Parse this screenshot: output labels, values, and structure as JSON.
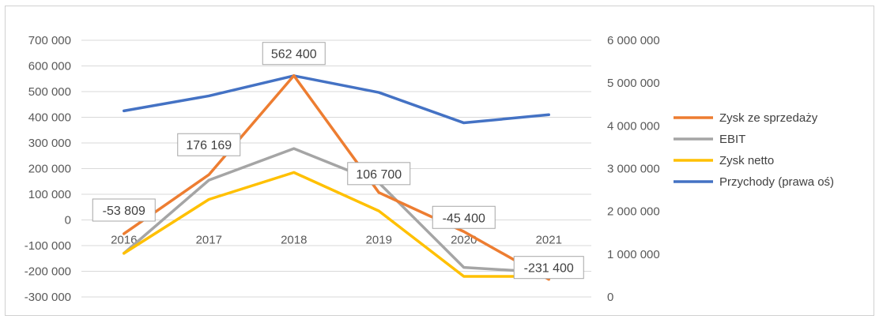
{
  "chart_data": {
    "type": "line",
    "categories": [
      "2016",
      "2017",
      "2018",
      "2019",
      "2020",
      "2021"
    ],
    "left_axis": {
      "ylim": [
        -300000,
        700000
      ],
      "ticks": [
        700000,
        600000,
        500000,
        400000,
        300000,
        200000,
        100000,
        0,
        -100000,
        -200000,
        -300000
      ],
      "tick_labels": [
        "700 000",
        "600 000",
        "500 000",
        "400 000",
        "300 000",
        "200 000",
        "100 000",
        "0",
        "-100 000",
        "-200 000",
        "-300 000"
      ]
    },
    "right_axis": {
      "ylim": [
        0,
        6000000
      ],
      "ticks": [
        6000000,
        5000000,
        4000000,
        3000000,
        2000000,
        1000000,
        0
      ],
      "tick_labels": [
        "6 000 000",
        "5 000 000",
        "4 000 000",
        "3 000 000",
        "2 000 000",
        "1 000 000",
        "0"
      ]
    },
    "series": [
      {
        "name": "Zysk ze sprzedaży",
        "axis": "left",
        "color": "#ED7D31",
        "values": [
          -53809,
          176169,
          562400,
          106700,
          -45400,
          -231400
        ],
        "data_labels": [
          "-53 809",
          "176 169",
          "562 400",
          "106 700",
          "-45 400",
          "-231 400"
        ]
      },
      {
        "name": "EBIT",
        "axis": "left",
        "color": "#A5A5A5",
        "values": [
          -130000,
          155000,
          278000,
          145000,
          -185000,
          -205000
        ]
      },
      {
        "name": "Zysk netto",
        "axis": "left",
        "color": "#FFC000",
        "values": [
          -130000,
          80000,
          185000,
          35000,
          -220000,
          -220000
        ]
      },
      {
        "name": "Przychody (prawa oś)",
        "axis": "right",
        "color": "#4472C4",
        "values": [
          4350000,
          4700000,
          5170000,
          4780000,
          4070000,
          4260000
        ]
      }
    ],
    "grid": true,
    "legend_position": "right"
  }
}
